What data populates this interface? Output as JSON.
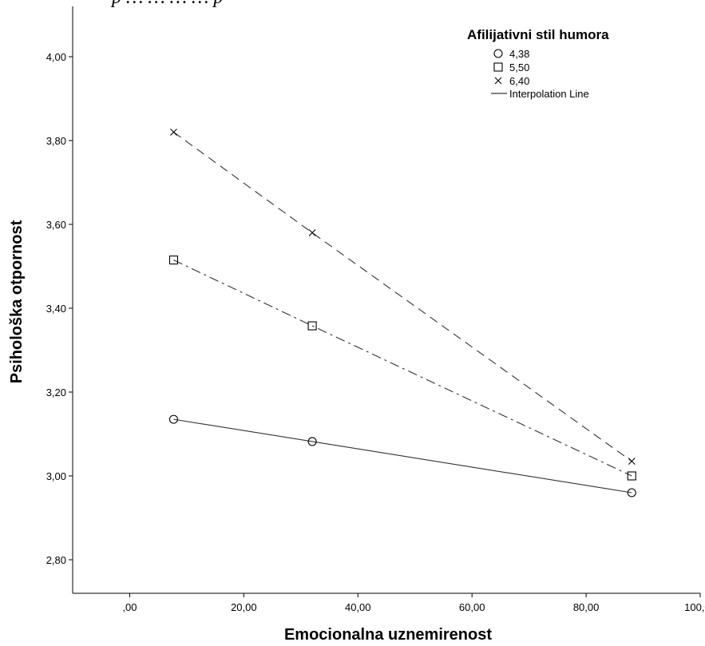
{
  "caption": "p … … … … p",
  "chart_data": {
    "type": "line",
    "xlabel": "Emocionalna uznemirenost",
    "ylabel": "Psihološka otpornost",
    "xlim": [
      -10,
      100
    ],
    "ylim": [
      2.72,
      4.12
    ],
    "x_ticks": [
      0,
      20,
      40,
      60,
      80,
      100
    ],
    "x_tick_labels": [
      ",00",
      "20,00",
      "40,00",
      "60,00",
      "80,00",
      "100,00"
    ],
    "y_ticks": [
      2.8,
      3.0,
      3.2,
      3.4,
      3.6,
      3.8,
      4.0
    ],
    "y_tick_labels": [
      "2,80",
      "3,00",
      "3,20",
      "3,40",
      "3,60",
      "3,80",
      "4,00"
    ],
    "grid": false,
    "legend": {
      "title": "Afilijativni stil humora",
      "position": "top-right",
      "line_label": "Interpolation Line"
    },
    "series": [
      {
        "name": "4,38",
        "marker": "circle",
        "dash": "solid",
        "x": [
          7.7,
          32.0,
          88.0
        ],
        "y": [
          3.135,
          3.082,
          2.96
        ]
      },
      {
        "name": "5,50",
        "marker": "square",
        "dash": "dashdot",
        "x": [
          7.7,
          32.0,
          88.0
        ],
        "y": [
          3.515,
          3.358,
          3.0
        ]
      },
      {
        "name": "6,40",
        "marker": "x",
        "dash": "dashed",
        "x": [
          7.7,
          32.0,
          88.0
        ],
        "y": [
          3.82,
          3.58,
          3.035
        ]
      }
    ]
  }
}
